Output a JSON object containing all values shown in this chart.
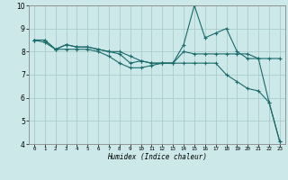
{
  "xlabel": "Humidex (Indice chaleur)",
  "bg_color": "#cce8e8",
  "grid_color": "#aacccc",
  "line_color": "#1a6b6b",
  "xlim": [
    -0.5,
    23.5
  ],
  "ylim": [
    4,
    10
  ],
  "xticks": [
    0,
    1,
    2,
    3,
    4,
    5,
    6,
    7,
    8,
    9,
    10,
    11,
    12,
    13,
    14,
    15,
    16,
    17,
    18,
    19,
    20,
    21,
    22,
    23
  ],
  "yticks": [
    4,
    5,
    6,
    7,
    8,
    9,
    10
  ],
  "series": [
    [
      8.5,
      8.5,
      8.1,
      8.3,
      8.2,
      8.2,
      8.1,
      8.0,
      8.0,
      7.8,
      7.6,
      7.5,
      7.5,
      7.5,
      8.3,
      10.0,
      8.6,
      8.8,
      9.0,
      8.0,
      7.7,
      7.7,
      5.8,
      4.1
    ],
    [
      8.5,
      8.5,
      8.1,
      8.3,
      8.2,
      8.2,
      8.1,
      8.0,
      7.9,
      7.5,
      7.6,
      7.5,
      7.5,
      7.5,
      8.0,
      7.9,
      7.9,
      7.9,
      7.9,
      7.9,
      7.9,
      7.7,
      7.7,
      7.7
    ],
    [
      8.5,
      8.4,
      8.1,
      8.1,
      8.1,
      8.1,
      8.0,
      7.8,
      7.5,
      7.3,
      7.3,
      7.4,
      7.5,
      7.5,
      7.5,
      7.5,
      7.5,
      7.5,
      7.0,
      6.7,
      6.4,
      6.3,
      5.8,
      4.1
    ]
  ]
}
